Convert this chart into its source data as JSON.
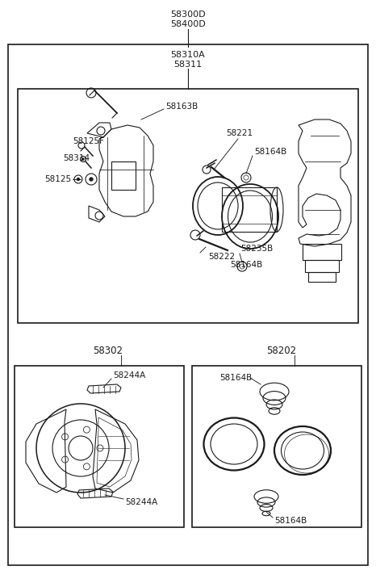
{
  "bg_color": "#ffffff",
  "lc": "#1a1a1a",
  "fig_w": 4.66,
  "fig_h": 7.27,
  "dpi": 100,
  "title1": "58300D",
  "title2": "58400D",
  "label_58310A": "58310A",
  "label_58311": "58311",
  "label_58302": "58302",
  "label_58244A_top": "58244A",
  "label_58244A_bot": "58244A",
  "label_58202": "58202",
  "label_58164B_tr": "58164B",
  "label_58164B_br": "58164B",
  "label_58163B": "58163B",
  "label_58125F": "58125F",
  "label_58314": "58314",
  "label_58125": "58125",
  "label_58221": "58221",
  "label_58164B_main": "58164B",
  "label_58222": "58222",
  "label_58235B": "58235B",
  "label_58164B_main2": "58164B"
}
